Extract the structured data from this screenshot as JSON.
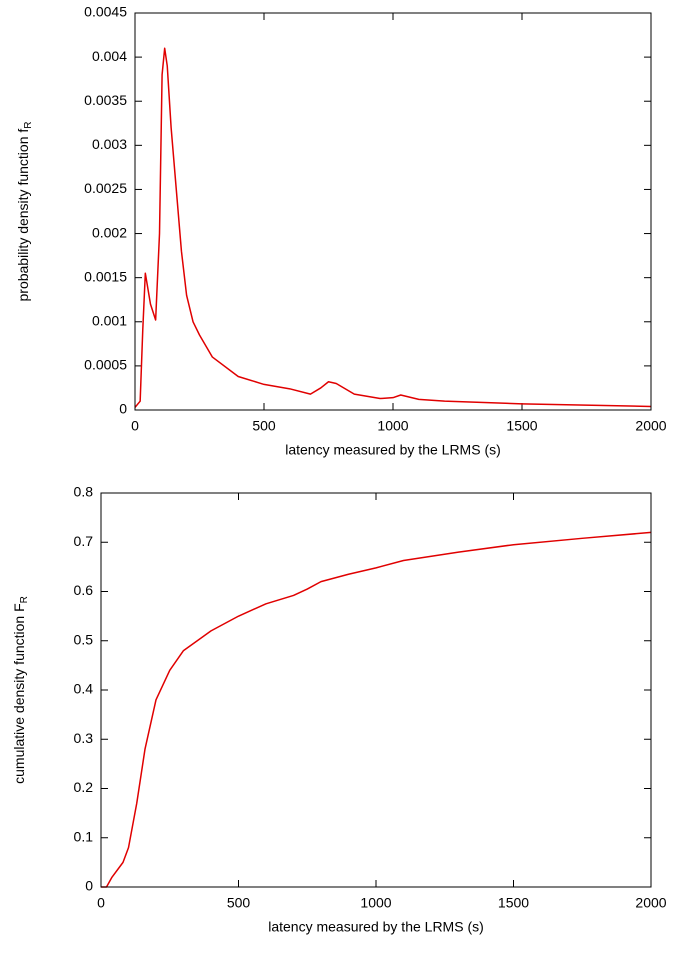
{
  "chart_data": [
    {
      "type": "line",
      "xlabel": "latency measured by the LRMS (s)",
      "ylabel": "probability density function f",
      "ylabel_subscript": "R",
      "x": [
        0,
        20,
        30,
        40,
        60,
        80,
        95,
        105,
        115,
        125,
        140,
        160,
        180,
        200,
        225,
        250,
        300,
        400,
        500,
        600,
        680,
        720,
        750,
        780,
        850,
        950,
        1000,
        1030,
        1100,
        1200,
        1500,
        2000
      ],
      "series": [
        {
          "color": "#e00000",
          "values": [
            3e-05,
            0.0001,
            0.0009,
            0.00155,
            0.0012,
            0.00102,
            0.002,
            0.0038,
            0.0041,
            0.0039,
            0.0032,
            0.0025,
            0.0018,
            0.0013,
            0.001,
            0.00085,
            0.0006,
            0.00038,
            0.00029,
            0.00024,
            0.00018,
            0.00025,
            0.00032,
            0.0003,
            0.00018,
            0.00013,
            0.00014,
            0.00017,
            0.00012,
            0.0001,
            7e-05,
            4e-05
          ]
        }
      ],
      "xlim": [
        0,
        2000
      ],
      "xticks": [
        0,
        500,
        1000,
        1500,
        2000
      ],
      "ylim": [
        0,
        0.0045
      ],
      "yticks": [
        0,
        0.0005,
        0.001,
        0.0015,
        0.002,
        0.0025,
        0.003,
        0.0035,
        0.004,
        0.0045
      ]
    },
    {
      "type": "line",
      "xlabel": "latency measured by the LRMS (s)",
      "ylabel": "cumulative density function F",
      "ylabel_subscript": "R",
      "x": [
        0,
        20,
        40,
        80,
        100,
        130,
        160,
        200,
        250,
        300,
        400,
        500,
        600,
        700,
        750,
        800,
        900,
        1000,
        1100,
        1300,
        1500,
        1750,
        2000
      ],
      "series": [
        {
          "color": "#e00000",
          "values": [
            0,
            0,
            0.02,
            0.05,
            0.08,
            0.17,
            0.28,
            0.38,
            0.44,
            0.48,
            0.52,
            0.55,
            0.575,
            0.592,
            0.605,
            0.62,
            0.635,
            0.648,
            0.663,
            0.68,
            0.695,
            0.708,
            0.72
          ]
        }
      ],
      "xlim": [
        0,
        2000
      ],
      "xticks": [
        0,
        500,
        1000,
        1500,
        2000
      ],
      "ylim": [
        0,
        0.8
      ],
      "yticks": [
        0,
        0.1,
        0.2,
        0.3,
        0.4,
        0.5,
        0.6,
        0.7,
        0.8
      ]
    }
  ]
}
